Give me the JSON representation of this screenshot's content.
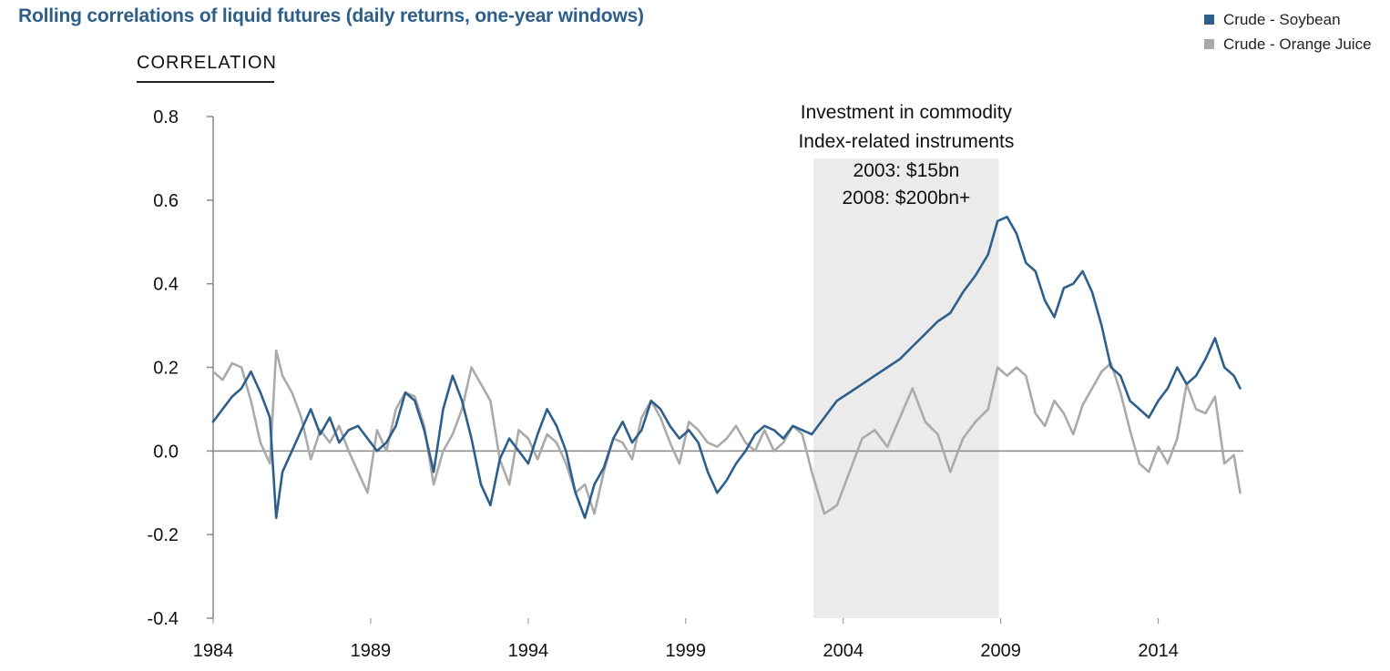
{
  "chart_data": {
    "type": "line",
    "title": "Rolling correlations of liquid futures (daily returns, one-year windows)",
    "ylabel": "CORRELATION",
    "xlabel": "",
    "xlim": [
      1984,
      2016.7
    ],
    "ylim": [
      -0.4,
      0.8
    ],
    "x_ticks": [
      "1984",
      "1989",
      "1994",
      "1999",
      "2004",
      "2009",
      "2014"
    ],
    "y_ticks": [
      "0.8",
      "0.6",
      "0.4",
      "0.2",
      "0.0",
      "-0.2",
      "-0.4"
    ],
    "legend_position": "top-right",
    "shaded_region": {
      "x": [
        2003,
        2009
      ],
      "label_lines": [
        "Investment in commodity",
        "Index-related instruments",
        "2003: $15bn",
        "2008: $200bn+"
      ]
    },
    "series": [
      {
        "name": "Crude - Soybean",
        "color": "#2e5f8a",
        "x": [
          1984.0,
          1984.3,
          1984.6,
          1984.9,
          1985.2,
          1985.5,
          1985.8,
          1986.0,
          1986.2,
          1986.5,
          1986.8,
          1987.1,
          1987.4,
          1987.7,
          1988.0,
          1988.3,
          1988.6,
          1988.9,
          1989.2,
          1989.5,
          1989.8,
          1990.1,
          1990.4,
          1990.7,
          1991.0,
          1991.3,
          1991.6,
          1991.9,
          1992.2,
          1992.5,
          1992.8,
          1993.1,
          1993.4,
          1993.7,
          1994.0,
          1994.3,
          1994.6,
          1994.9,
          1995.2,
          1995.5,
          1995.8,
          1996.1,
          1996.4,
          1996.7,
          1997.0,
          1997.3,
          1997.6,
          1997.9,
          1998.2,
          1998.5,
          1998.8,
          1999.1,
          1999.4,
          1999.7,
          2000.0,
          2000.3,
          2000.6,
          2000.9,
          2001.2,
          2001.5,
          2001.8,
          2002.1,
          2002.4,
          2002.7,
          2003.0,
          2003.4,
          2003.8,
          2004.2,
          2004.6,
          2005.0,
          2005.4,
          2005.8,
          2006.2,
          2006.6,
          2007.0,
          2007.4,
          2007.8,
          2008.2,
          2008.6,
          2008.9,
          2009.2,
          2009.5,
          2009.8,
          2010.1,
          2010.4,
          2010.7,
          2011.0,
          2011.3,
          2011.6,
          2011.9,
          2012.2,
          2012.5,
          2012.8,
          2013.1,
          2013.4,
          2013.7,
          2014.0,
          2014.3,
          2014.6,
          2014.9,
          2015.2,
          2015.5,
          2015.8,
          2016.1,
          2016.4,
          2016.6
        ],
        "y": [
          0.07,
          0.1,
          0.13,
          0.15,
          0.19,
          0.14,
          0.08,
          -0.16,
          -0.05,
          0.0,
          0.05,
          0.1,
          0.04,
          0.08,
          0.02,
          0.05,
          0.06,
          0.03,
          0.0,
          0.02,
          0.06,
          0.14,
          0.12,
          0.05,
          -0.05,
          0.1,
          0.18,
          0.12,
          0.03,
          -0.08,
          -0.13,
          -0.02,
          0.03,
          0.0,
          -0.03,
          0.04,
          0.1,
          0.06,
          0.0,
          -0.1,
          -0.16,
          -0.08,
          -0.04,
          0.03,
          0.07,
          0.02,
          0.05,
          0.12,
          0.1,
          0.06,
          0.03,
          0.05,
          0.02,
          -0.05,
          -0.1,
          -0.07,
          -0.03,
          0.0,
          0.04,
          0.06,
          0.05,
          0.03,
          0.06,
          0.05,
          0.04,
          0.08,
          0.12,
          0.14,
          0.16,
          0.18,
          0.2,
          0.22,
          0.25,
          0.28,
          0.31,
          0.33,
          0.38,
          0.42,
          0.47,
          0.55,
          0.56,
          0.52,
          0.45,
          0.43,
          0.36,
          0.32,
          0.39,
          0.4,
          0.43,
          0.38,
          0.3,
          0.2,
          0.18,
          0.12,
          0.1,
          0.08,
          0.12,
          0.15,
          0.2,
          0.16,
          0.18,
          0.22,
          0.27,
          0.2,
          0.18,
          0.15
        ]
      },
      {
        "name": "Crude - Orange Juice",
        "color": "#aaaaaa",
        "x": [
          1984.0,
          1984.3,
          1984.6,
          1984.9,
          1985.2,
          1985.5,
          1985.8,
          1986.0,
          1986.2,
          1986.5,
          1986.8,
          1987.1,
          1987.4,
          1987.7,
          1988.0,
          1988.3,
          1988.6,
          1988.9,
          1989.2,
          1989.5,
          1989.8,
          1990.1,
          1990.4,
          1990.7,
          1991.0,
          1991.3,
          1991.6,
          1991.9,
          1992.2,
          1992.5,
          1992.8,
          1993.1,
          1993.4,
          1993.7,
          1994.0,
          1994.3,
          1994.6,
          1994.9,
          1995.2,
          1995.5,
          1995.8,
          1996.1,
          1996.4,
          1996.7,
          1997.0,
          1997.3,
          1997.6,
          1997.9,
          1998.2,
          1998.5,
          1998.8,
          1999.1,
          1999.4,
          1999.7,
          2000.0,
          2000.3,
          2000.6,
          2000.9,
          2001.2,
          2001.5,
          2001.8,
          2002.1,
          2002.4,
          2002.7,
          2003.0,
          2003.4,
          2003.8,
          2004.2,
          2004.6,
          2005.0,
          2005.4,
          2005.8,
          2006.2,
          2006.6,
          2007.0,
          2007.4,
          2007.8,
          2008.2,
          2008.6,
          2008.9,
          2009.2,
          2009.5,
          2009.8,
          2010.1,
          2010.4,
          2010.7,
          2011.0,
          2011.3,
          2011.6,
          2011.9,
          2012.2,
          2012.5,
          2012.8,
          2013.1,
          2013.4,
          2013.7,
          2014.0,
          2014.3,
          2014.6,
          2014.9,
          2015.2,
          2015.5,
          2015.8,
          2016.1,
          2016.4,
          2016.6
        ],
        "y": [
          0.19,
          0.17,
          0.21,
          0.2,
          0.12,
          0.02,
          -0.03,
          0.24,
          0.18,
          0.14,
          0.08,
          -0.02,
          0.05,
          0.02,
          0.06,
          0.0,
          -0.05,
          -0.1,
          0.05,
          0.0,
          0.1,
          0.14,
          0.13,
          0.06,
          -0.08,
          0.0,
          0.04,
          0.1,
          0.2,
          0.16,
          0.12,
          -0.02,
          -0.08,
          0.05,
          0.03,
          -0.02,
          0.04,
          0.02,
          -0.03,
          -0.1,
          -0.08,
          -0.15,
          -0.05,
          0.03,
          0.02,
          -0.02,
          0.08,
          0.12,
          0.08,
          0.02,
          -0.03,
          0.07,
          0.05,
          0.02,
          0.01,
          0.03,
          0.06,
          0.02,
          0.0,
          0.05,
          0.0,
          0.02,
          0.06,
          0.04,
          -0.05,
          -0.15,
          -0.13,
          -0.05,
          0.03,
          0.05,
          0.01,
          0.08,
          0.15,
          0.07,
          0.04,
          -0.05,
          0.03,
          0.07,
          0.1,
          0.2,
          0.18,
          0.2,
          0.18,
          0.09,
          0.06,
          0.12,
          0.09,
          0.04,
          0.11,
          0.15,
          0.19,
          0.21,
          0.14,
          0.05,
          -0.03,
          -0.05,
          0.01,
          -0.03,
          0.03,
          0.16,
          0.1,
          0.09,
          0.13,
          -0.03,
          -0.01,
          -0.1
        ]
      }
    ]
  }
}
